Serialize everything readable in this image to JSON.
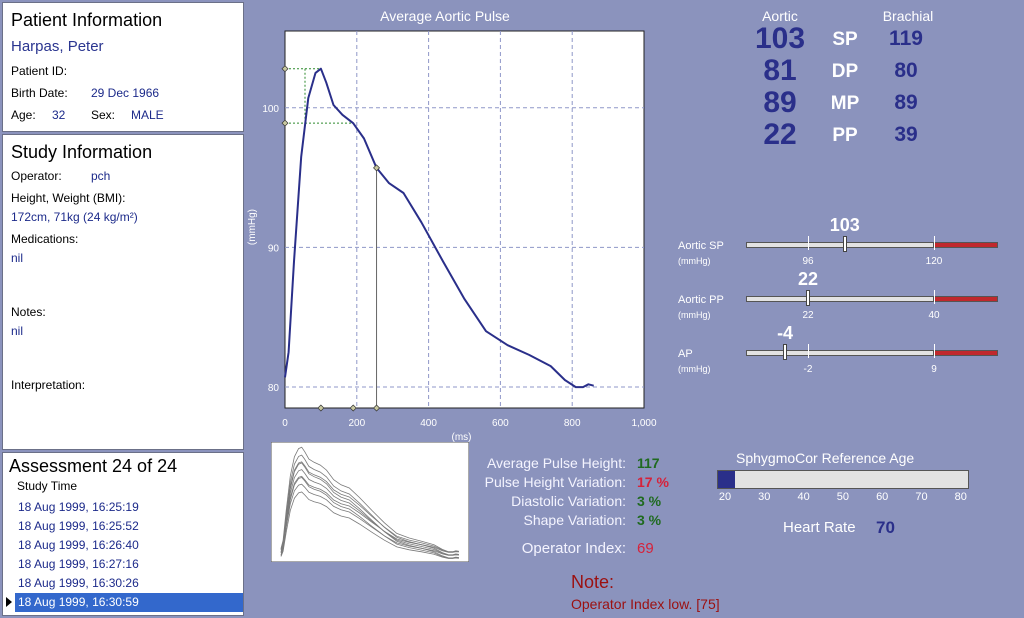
{
  "patient": {
    "title": "Patient Information",
    "name": "Harpas, Peter",
    "id_label": "Patient ID:",
    "id_value": "",
    "birth_label": "Birth Date:",
    "birth_value": "29 Dec 1966",
    "age_label": "Age:",
    "age_value": "32",
    "sex_label": "Sex:",
    "sex_value": "MALE"
  },
  "study": {
    "title": "Study Information",
    "operator_label": "Operator:",
    "operator_value": "pch",
    "hw_label": "Height, Weight (BMI):",
    "hw_value": "172cm, 71kg (24 kg/m²)",
    "med_label": "Medications:",
    "med_value": "nil",
    "notes_label": "Notes:",
    "notes_value": "nil",
    "interp_label": "Interpretation:"
  },
  "assessment": {
    "title": "Assessment 24 of 24",
    "header": "Study Time",
    "items": [
      "18 Aug 1999, 16:25:19",
      "18 Aug 1999, 16:25:52",
      "18 Aug 1999, 16:26:40",
      "18 Aug 1999, 16:27:16",
      "18 Aug 1999, 16:30:26",
      "18 Aug 1999, 16:30:59"
    ],
    "selected_index": 5
  },
  "chart_data": {
    "type": "line",
    "title": "Average Aortic Pulse",
    "xlabel": "(ms)",
    "ylabel": "(mmHg)",
    "xlim": [
      0,
      1000
    ],
    "ylim": [
      78.5,
      105.5
    ],
    "xticks": [
      "0",
      "200",
      "400",
      "600",
      "800",
      "1,000"
    ],
    "yticks": [
      "80",
      "90",
      "100"
    ],
    "grid": true,
    "series": [
      {
        "x": [
          0,
          10,
          25,
          45,
          65,
          85,
          100,
          115,
          135,
          160,
          190,
          220,
          255,
          290,
          330,
          380,
          440,
          500,
          560,
          620,
          680,
          740,
          780,
          810,
          830,
          845,
          860
        ],
        "y": [
          80.7,
          82.5,
          89,
          96.5,
          100.7,
          102.5,
          102.8,
          101.8,
          100.2,
          99.5,
          98.9,
          97.8,
          95.7,
          94.6,
          93.9,
          91.8,
          89.0,
          86.3,
          84.0,
          83.0,
          82.3,
          81.5,
          80.5,
          80.0,
          80.0,
          80.2,
          80.1
        ]
      }
    ],
    "annotations": {
      "peak": {
        "x": 100,
        "y": 102.8
      },
      "shoulder": {
        "x": 190,
        "y": 98.9
      },
      "notch": {
        "x": 255,
        "y": 95.7
      }
    }
  },
  "pressures": {
    "aortic_header": "Aortic",
    "brachial_header": "Brachial",
    "rows": [
      {
        "label": "SP",
        "aortic": "103",
        "brachial": "119"
      },
      {
        "label": "DP",
        "aortic": "81",
        "brachial": "80"
      },
      {
        "label": "MP",
        "aortic": "89",
        "brachial": "89"
      },
      {
        "label": "PP",
        "aortic": "22",
        "brachial": "39"
      }
    ]
  },
  "indicators": [
    {
      "name": "Aortic SP",
      "unit": "(mmHg)",
      "value": 103,
      "value_text": "103",
      "min": 70,
      "max": 140,
      "normal": 96,
      "normal_text": "96",
      "limit": 120,
      "limit_text": "120"
    },
    {
      "name": "Aortic PP",
      "unit": "(mmHg)",
      "value": 22,
      "value_text": "22",
      "min": 0,
      "max": 50,
      "normal": 22,
      "normal_text": "22",
      "limit": 40,
      "limit_text": "40"
    },
    {
      "name": "AP",
      "unit": "(mmHg)",
      "value": -4,
      "value_text": "-4",
      "min": -10,
      "max": 12,
      "normal": -2,
      "normal_text": "-2",
      "limit": 9,
      "limit_text": "9"
    }
  ],
  "quality": {
    "items": [
      {
        "label": "Average Pulse Height:",
        "value": "117",
        "color": "#1f6a1f"
      },
      {
        "label": "Pulse Height Variation:",
        "value": "17 %",
        "color": "#d6223a"
      },
      {
        "label": "Diastolic Variation:",
        "value": "3 %",
        "color": "#1f6a1f"
      },
      {
        "label": "Shape Variation:",
        "value": "3 %",
        "color": "#1f6a1f"
      }
    ],
    "operator_index_label": "Operator Index:",
    "operator_index_value": "69"
  },
  "note": {
    "title": "Note:",
    "text": "Operator Index low. [75]"
  },
  "reference_age": {
    "title": "SphygmoCor Reference Age",
    "value": 24,
    "min": 20,
    "max": 80,
    "ticks": [
      "20",
      "30",
      "40",
      "50",
      "60",
      "70",
      "80"
    ]
  },
  "heart_rate": {
    "label": "Heart Rate",
    "value": "70"
  },
  "colors": {
    "background": "#8b93bd",
    "curve": "#2a2f8a",
    "alarm": "#c0282c",
    "note": "#9c1010"
  }
}
